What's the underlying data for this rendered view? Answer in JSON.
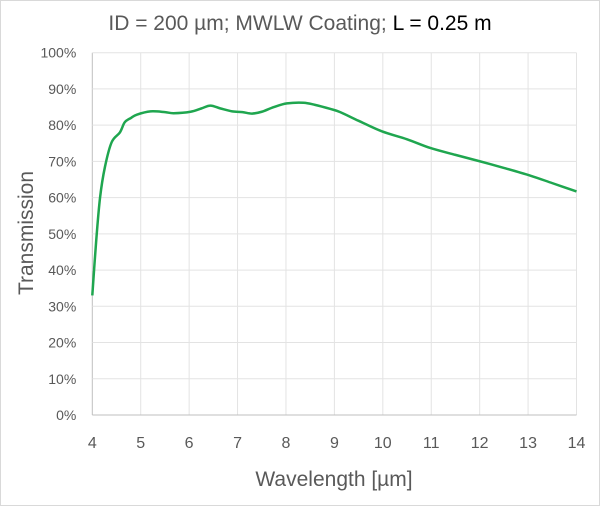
{
  "chart_data": {
    "type": "line",
    "title_main": "ID = 200 µm; MWLW Coating; ",
    "title_highlight": "L = 0.25 m",
    "xlabel": "Wavelength [µm]",
    "ylabel": "Transmission",
    "xlim": [
      4,
      14
    ],
    "ylim": [
      0,
      100
    ],
    "xticks": [
      "4",
      "5",
      "6",
      "7",
      "8",
      "9",
      "10",
      "11",
      "12",
      "13",
      "14"
    ],
    "yticks": [
      "0%",
      "10%",
      "20%",
      "30%",
      "40%",
      "50%",
      "60%",
      "70%",
      "80%",
      "90%",
      "100%"
    ],
    "grid": true,
    "color": "#1fa64f",
    "series": [
      {
        "x": [
          4.0,
          4.08,
          4.16,
          4.26,
          4.4,
          4.57,
          4.67,
          4.8,
          4.92,
          5.2,
          5.5,
          5.68,
          6.03,
          6.25,
          6.44,
          6.65,
          6.89,
          7.1,
          7.3,
          7.5,
          7.75,
          8.02,
          8.36,
          8.6,
          8.91,
          9.12,
          9.5,
          9.98,
          10.5,
          10.98,
          11.5,
          12.01,
          12.5,
          13.04,
          13.5,
          14.0
        ],
        "y": [
          33,
          48,
          60,
          68.4,
          75.3,
          78,
          80.8,
          82,
          82.9,
          83.8,
          83.6,
          83.3,
          83.7,
          84.6,
          85.4,
          84.6,
          83.8,
          83.6,
          83.2,
          83.7,
          85,
          86,
          86.2,
          85.6,
          84.5,
          83.6,
          81.2,
          78.3,
          76.1,
          73.7,
          71.8,
          70,
          68.2,
          66.1,
          64,
          61.7
        ]
      }
    ]
  }
}
